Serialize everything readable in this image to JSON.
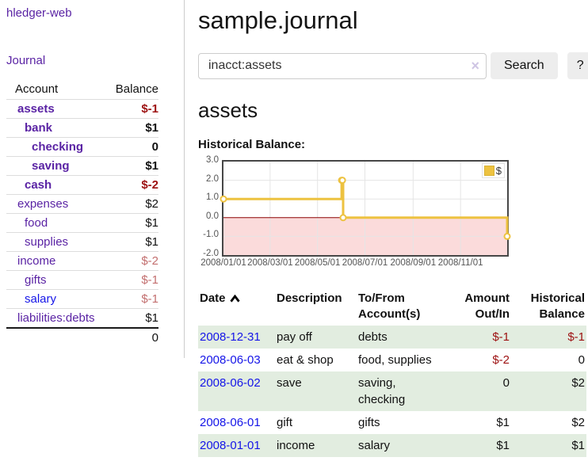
{
  "app": {
    "brand": "hledger-web"
  },
  "colors": {
    "link_visited_purple": "#5a23a4",
    "link_blue": "#1515e8",
    "negative_strong": "#9d1111",
    "negative_soft": "#c36f6f",
    "row_stripe_green": "#e2ede0",
    "series_gold": "#edc240",
    "negative_region_pink": "#fbdbdb",
    "zero_line_red": "#8b0000"
  },
  "icons": {
    "clear_search": "×",
    "date_sort": "chevron-up"
  },
  "sidebar": {
    "journal_link": "Journal",
    "table": {
      "account_header": "Account",
      "balance_header": "Balance",
      "rows": [
        {
          "name": "assets",
          "depth": 1,
          "balance": "$-1",
          "emphasis": true,
          "balance_tone": "negative-strong",
          "link_tone": "visited"
        },
        {
          "name": "bank",
          "depth": 2,
          "balance": "$1",
          "emphasis": true,
          "balance_tone": "normal",
          "link_tone": "visited"
        },
        {
          "name": "checking",
          "depth": 3,
          "balance": "0",
          "emphasis": true,
          "balance_tone": "normal",
          "link_tone": "visited"
        },
        {
          "name": "saving",
          "depth": 3,
          "balance": "$1",
          "emphasis": true,
          "balance_tone": "normal",
          "link_tone": "visited"
        },
        {
          "name": "cash",
          "depth": 2,
          "balance": "$-2",
          "emphasis": true,
          "balance_tone": "negative-strong",
          "link_tone": "visited"
        },
        {
          "name": "expenses",
          "depth": 1,
          "balance": "$2",
          "emphasis": false,
          "balance_tone": "normal",
          "link_tone": "visited"
        },
        {
          "name": "food",
          "depth": 2,
          "balance": "$1",
          "emphasis": false,
          "balance_tone": "normal",
          "link_tone": "visited"
        },
        {
          "name": "supplies",
          "depth": 2,
          "balance": "$1",
          "emphasis": false,
          "balance_tone": "normal",
          "link_tone": "visited"
        },
        {
          "name": "income",
          "depth": 1,
          "balance": "$-2",
          "emphasis": false,
          "balance_tone": "negative-soft",
          "link_tone": "visited"
        },
        {
          "name": "gifts",
          "depth": 2,
          "balance": "$-1",
          "emphasis": false,
          "balance_tone": "negative-soft",
          "link_tone": "visited"
        },
        {
          "name": "salary",
          "depth": 2,
          "balance": "$-1",
          "emphasis": false,
          "balance_tone": "negative-soft",
          "link_tone": "unvisited"
        },
        {
          "name": "liabilities:debts",
          "depth": 1,
          "balance": "$1",
          "emphasis": false,
          "balance_tone": "normal",
          "link_tone": "visited"
        }
      ],
      "total": "0"
    }
  },
  "main": {
    "title": "sample.journal",
    "search": {
      "value": "inacct:assets",
      "clear_icon": "×",
      "button": "Search",
      "help_button": "?"
    },
    "account_heading": "assets",
    "chart_label": "Historical Balance:"
  },
  "chart_data": {
    "type": "line",
    "title": "Historical Balance of assets",
    "steps": true,
    "series": [
      {
        "name": "$",
        "color": "#edc240",
        "points": [
          [
            "2008-01-01",
            1
          ],
          [
            "2008-06-01",
            2
          ],
          [
            "2008-06-02",
            2
          ],
          [
            "2008-06-03",
            0
          ],
          [
            "2008-12-31",
            -1
          ]
        ]
      }
    ],
    "xlim": [
      "2008-01-01",
      "2008-12-31"
    ],
    "ylim": [
      -2,
      3
    ],
    "ytick_values": [
      3,
      2,
      1,
      0,
      -1,
      -2
    ],
    "ytick_labels": [
      "3.0",
      "2.0",
      "1.0",
      "0.0",
      "-1.0",
      "-2.0"
    ],
    "xticks": [
      {
        "date": "2008-01-01",
        "label": "2008/01/01"
      },
      {
        "date": "2008-03-01",
        "label": "2008/03/01"
      },
      {
        "date": "2008-05-01",
        "label": "2008/05/01"
      },
      {
        "date": "2008-07-01",
        "label": "2008/07/01"
      },
      {
        "date": "2008-09-01",
        "label": "2008/09/01"
      },
      {
        "date": "2008-11-01",
        "label": "2008/11/01"
      }
    ],
    "legend": {
      "label": "$",
      "position": "top-right"
    },
    "grid": true
  },
  "register": {
    "headers": [
      "Date",
      "Description",
      "To/From Account(s)",
      "Amount Out/In",
      "Historical Balance"
    ],
    "rows": [
      {
        "date": "2008-12-31",
        "description": "pay off",
        "accounts": "debts",
        "amount": "$-1",
        "balance": "$-1"
      },
      {
        "date": "2008-06-03",
        "description": "eat & shop",
        "accounts": "food, supplies",
        "amount": "$-2",
        "balance": "0"
      },
      {
        "date": "2008-06-02",
        "description": "save",
        "accounts": "saving, checking",
        "amount": "0",
        "balance": "$2"
      },
      {
        "date": "2008-06-01",
        "description": "gift",
        "accounts": "gifts",
        "amount": "$1",
        "balance": "$2"
      },
      {
        "date": "2008-01-01",
        "description": "income",
        "accounts": "salary",
        "amount": "$1",
        "balance": "$1"
      }
    ]
  }
}
